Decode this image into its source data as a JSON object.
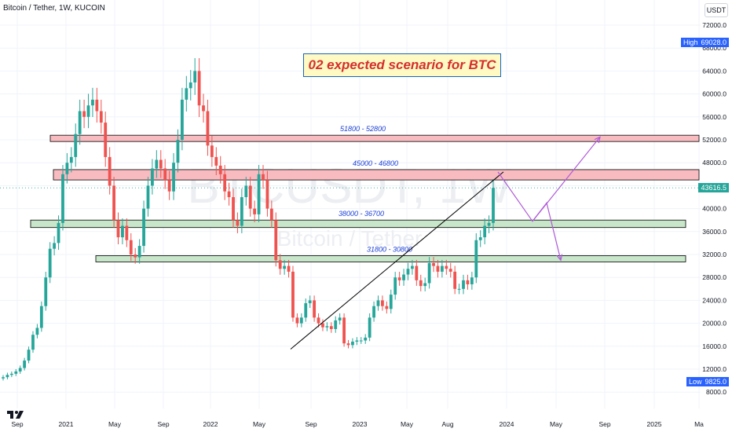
{
  "header": {
    "title": "Bitcoin / Tether, 1W, KUCOIN"
  },
  "currency_button": "USDT",
  "watermark": {
    "symbol": "BTCUSDT, 1W",
    "name": "Bitcoin / Tether"
  },
  "colors": {
    "up": "#26a69a",
    "down": "#ef5350",
    "resistance_fill": "#f8bbc0",
    "support_fill": "#c8e6c9",
    "zone_border": "#000000",
    "label_text": "#1a3fd6",
    "arrow": "#b05ad9",
    "price_tag": "#26a69a",
    "high_low_tag": "#2962ff"
  },
  "price_tags": {
    "high_label": "High",
    "high_value": "69028.0",
    "low_label": "Low",
    "low_value": "9825.0",
    "last_value": "43616.5"
  },
  "annotation": {
    "title": "02 expected scenario for BTC"
  },
  "zones": [
    {
      "label": "51800 - 52800",
      "low": 51800,
      "high": 52800,
      "kind": "resistance"
    },
    {
      "label": "45000 - 46800",
      "low": 45000,
      "high": 46800,
      "kind": "resistance"
    },
    {
      "label": "38000 - 36700",
      "low": 36700,
      "high": 38000,
      "kind": "support"
    },
    {
      "label": "31800 - 30800",
      "low": 30800,
      "high": 31800,
      "kind": "support"
    }
  ],
  "chart_data": {
    "type": "candlestick",
    "title": "Bitcoin / Tether, 1W, KUCOIN",
    "y_unit": "USDT",
    "y_ticks": [
      "72000.0",
      "68000.0",
      "64000.0",
      "60000.0",
      "56000.0",
      "52000.0",
      "48000.0",
      "44000.0",
      "40000.0",
      "36000.0",
      "32000.0",
      "28000.0",
      "24000.0",
      "20000.0",
      "16000.0",
      "12000.0",
      "8000.0"
    ],
    "x_ticks": [
      "Sep",
      "2021",
      "May",
      "Sep",
      "2022",
      "May",
      "Sep",
      "2023",
      "May",
      "Aug",
      "2024",
      "May",
      "Sep",
      "2025",
      "Ma"
    ],
    "ylim": [
      6500,
      74500
    ],
    "grid": true,
    "candles_approx_close": [
      10600,
      11000,
      11200,
      11600,
      12200,
      13500,
      15400,
      18000,
      19200,
      23000,
      28000,
      33000,
      34000,
      37500,
      46000,
      48000,
      49000,
      53000,
      57000,
      56000,
      58000,
      59000,
      57000,
      55000,
      49000,
      44000,
      38000,
      35000,
      37000,
      34500,
      32000,
      31500,
      33500,
      40000,
      44000,
      47000,
      48500,
      47000,
      45000,
      43000,
      48000,
      52000,
      59000,
      61000,
      62000,
      64000,
      58000,
      57000,
      51000,
      49000,
      47500,
      46000,
      43000,
      42000,
      38000,
      37000,
      42000,
      44000,
      40000,
      39000,
      46000,
      45000,
      40000,
      38000,
      31000,
      29500,
      30000,
      29000,
      21000,
      20000,
      21000,
      23500,
      24000,
      21000,
      20000,
      19300,
      19500,
      19000,
      20500,
      21000,
      16500,
      16200,
      16800,
      17000,
      17000,
      17500,
      21000,
      23000,
      24000,
      23000,
      22500,
      25000,
      28000,
      27500,
      28500,
      29500,
      30000,
      27500,
      26500,
      27000,
      30500,
      30000,
      29000,
      30000,
      29500,
      29000,
      26000,
      26000,
      27500,
      26800,
      28000,
      34500,
      35000,
      37000,
      37500,
      43616.5
    ],
    "trend_line": {
      "from_price": 15500,
      "to_price": 46400
    },
    "scenario_path": [
      46400,
      37800,
      52500
    ],
    "alt_path": [
      41000,
      31000
    ],
    "high": 69028.0,
    "low": 9825.0,
    "last": 43616.5
  }
}
